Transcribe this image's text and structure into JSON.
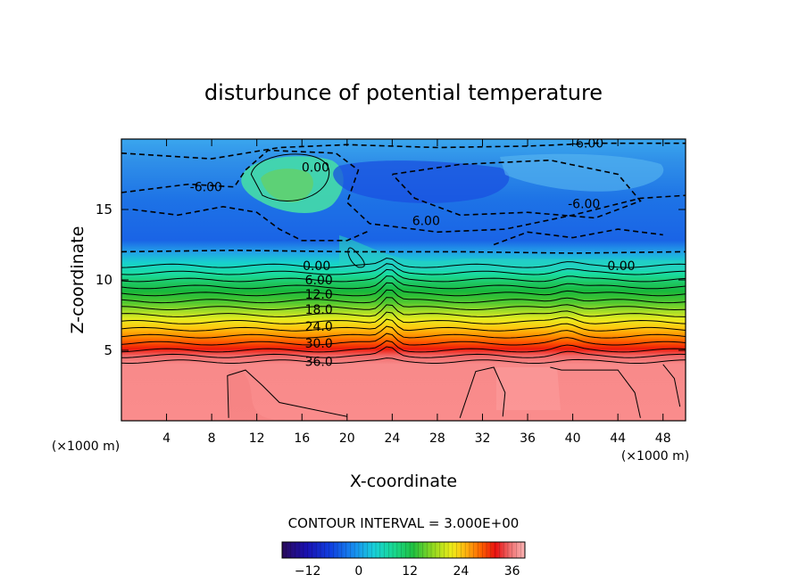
{
  "chart_data": {
    "type": "heatmap",
    "title": "disturbunce of potential temperature",
    "xlabel": "X-coordinate",
    "ylabel": "Z-coordinate",
    "x_unit": "(×1000 m)",
    "y_unit": "(×1000 m)",
    "xlim": [
      0,
      50
    ],
    "ylim": [
      0,
      20
    ],
    "x_ticks": [
      4,
      8,
      12,
      16,
      20,
      24,
      28,
      32,
      36,
      40,
      44,
      48
    ],
    "y_ticks": [
      5,
      10,
      15
    ],
    "contour_interval_text": "CONTOUR INTERVAL = 3.000E+00",
    "colorbar": {
      "min": -18,
      "max": 39,
      "tick_labels": [
        "-12",
        "0",
        "12",
        "24",
        "36"
      ],
      "tick_values": [
        -12,
        0,
        12,
        24,
        36
      ]
    },
    "contour_labels": [
      {
        "text": "0.00",
        "x": 17.2,
        "y": 18.0
      },
      {
        "text": "-6.00",
        "x": 7.5,
        "y": 16.6
      },
      {
        "text": "-6.00",
        "x": 41.3,
        "y": 19.7
      },
      {
        "text": "-6.00",
        "x": 41.0,
        "y": 15.4
      },
      {
        "text": "6.00",
        "x": 27.0,
        "y": 14.2
      },
      {
        "text": "0.00",
        "x": 44.3,
        "y": 11.0
      },
      {
        "text": "0.00",
        "x": 17.3,
        "y": 11.0
      },
      {
        "text": "6.00",
        "x": 17.5,
        "y": 10.0
      },
      {
        "text": "12.0",
        "x": 17.5,
        "y": 9.0
      },
      {
        "text": "18.0",
        "x": 17.5,
        "y": 7.9
      },
      {
        "text": "24.0",
        "x": 17.5,
        "y": 6.7
      },
      {
        "text": "30.0",
        "x": 17.5,
        "y": 5.5
      },
      {
        "text": "36.0",
        "x": 17.5,
        "y": 4.2
      }
    ]
  }
}
